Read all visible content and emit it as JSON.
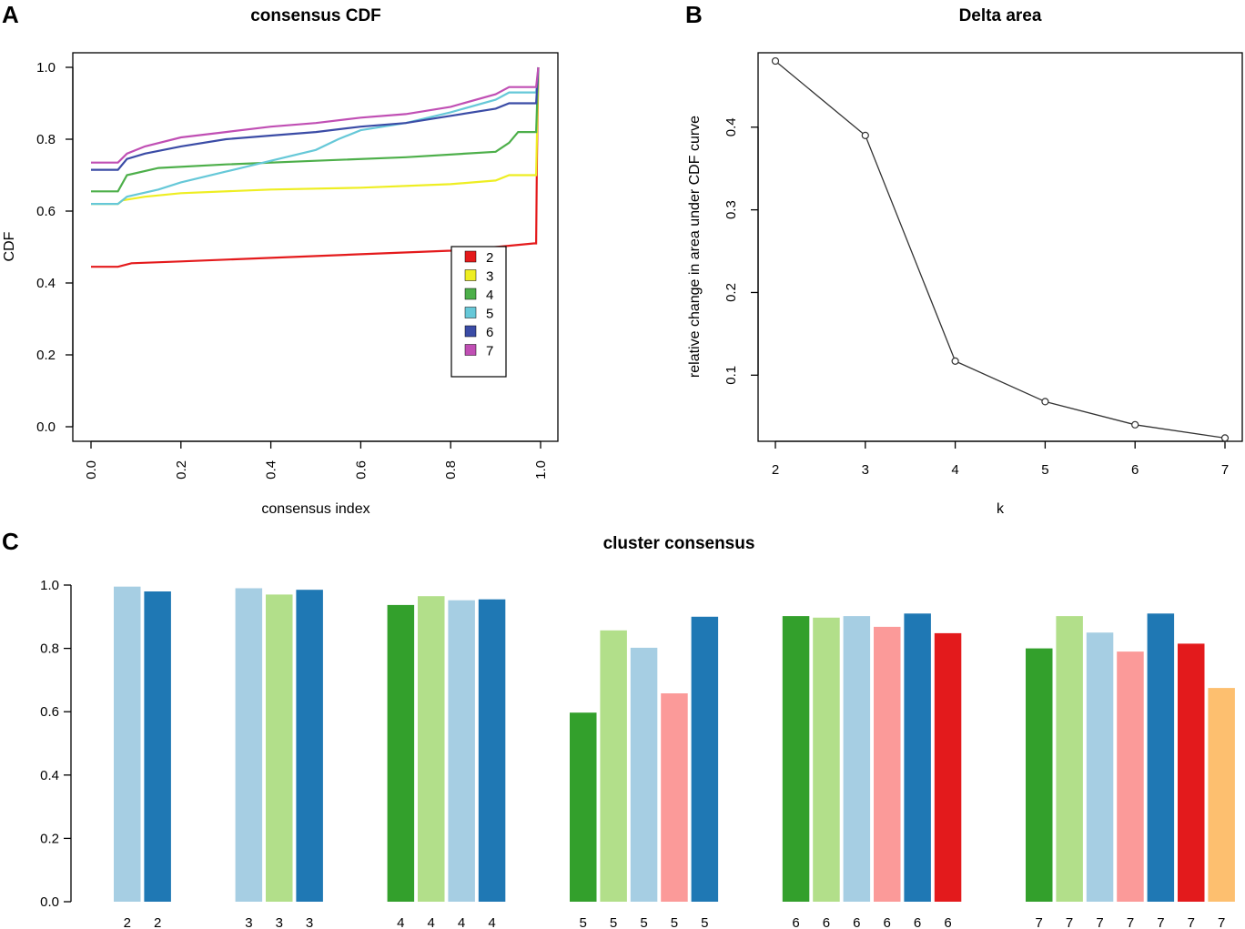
{
  "chart_data": [
    {
      "panel": "A",
      "type": "line",
      "title": "consensus CDF",
      "xlabel": "consensus index",
      "ylabel": "CDF",
      "xlim": [
        0,
        1
      ],
      "ylim": [
        0,
        1
      ],
      "xticks": [
        "0.0",
        "0.2",
        "0.4",
        "0.6",
        "0.8",
        "1.0"
      ],
      "yticks": [
        "0.0",
        "0.2",
        "0.4",
        "0.6",
        "0.8",
        "1.0"
      ],
      "legend_position": "bottom-right",
      "series": [
        {
          "name": "2",
          "color": "#e41a1c",
          "points": [
            [
              0,
              0.445
            ],
            [
              0.06,
              0.445
            ],
            [
              0.09,
              0.455
            ],
            [
              0.2,
              0.46
            ],
            [
              0.4,
              0.47
            ],
            [
              0.6,
              0.48
            ],
            [
              0.8,
              0.49
            ],
            [
              0.9,
              0.5
            ],
            [
              0.985,
              0.51
            ],
            [
              0.99,
              0.51
            ],
            [
              0.992,
              0.75
            ],
            [
              0.995,
              1.0
            ]
          ]
        },
        {
          "name": "3",
          "color": "#eeee22",
          "points": [
            [
              0,
              0.62
            ],
            [
              0.06,
              0.62
            ],
            [
              0.07,
              0.63
            ],
            [
              0.12,
              0.64
            ],
            [
              0.2,
              0.65
            ],
            [
              0.4,
              0.66
            ],
            [
              0.6,
              0.665
            ],
            [
              0.8,
              0.675
            ],
            [
              0.9,
              0.685
            ],
            [
              0.93,
              0.7
            ],
            [
              0.99,
              0.7
            ],
            [
              0.995,
              1.0
            ]
          ]
        },
        {
          "name": "4",
          "color": "#4daf4a",
          "points": [
            [
              0,
              0.655
            ],
            [
              0.06,
              0.655
            ],
            [
              0.08,
              0.7
            ],
            [
              0.15,
              0.72
            ],
            [
              0.3,
              0.73
            ],
            [
              0.5,
              0.74
            ],
            [
              0.7,
              0.75
            ],
            [
              0.9,
              0.765
            ],
            [
              0.93,
              0.79
            ],
            [
              0.95,
              0.82
            ],
            [
              0.99,
              0.82
            ],
            [
              0.995,
              1.0
            ]
          ]
        },
        {
          "name": "5",
          "color": "#66c8d8",
          "points": [
            [
              0,
              0.62
            ],
            [
              0.06,
              0.62
            ],
            [
              0.08,
              0.64
            ],
            [
              0.15,
              0.66
            ],
            [
              0.2,
              0.68
            ],
            [
              0.3,
              0.71
            ],
            [
              0.4,
              0.74
            ],
            [
              0.5,
              0.77
            ],
            [
              0.55,
              0.8
            ],
            [
              0.6,
              0.825
            ],
            [
              0.7,
              0.845
            ],
            [
              0.8,
              0.875
            ],
            [
              0.9,
              0.91
            ],
            [
              0.93,
              0.93
            ],
            [
              0.99,
              0.93
            ],
            [
              0.995,
              1.0
            ]
          ]
        },
        {
          "name": "6",
          "color": "#3b4ca6",
          "points": [
            [
              0,
              0.715
            ],
            [
              0.06,
              0.715
            ],
            [
              0.08,
              0.745
            ],
            [
              0.12,
              0.76
            ],
            [
              0.2,
              0.78
            ],
            [
              0.3,
              0.8
            ],
            [
              0.4,
              0.81
            ],
            [
              0.5,
              0.82
            ],
            [
              0.6,
              0.835
            ],
            [
              0.7,
              0.845
            ],
            [
              0.8,
              0.865
            ],
            [
              0.9,
              0.885
            ],
            [
              0.93,
              0.9
            ],
            [
              0.99,
              0.9
            ],
            [
              0.995,
              1.0
            ]
          ]
        },
        {
          "name": "7",
          "color": "#c04fb4",
          "points": [
            [
              0,
              0.735
            ],
            [
              0.06,
              0.735
            ],
            [
              0.08,
              0.76
            ],
            [
              0.12,
              0.78
            ],
            [
              0.2,
              0.805
            ],
            [
              0.3,
              0.82
            ],
            [
              0.4,
              0.835
            ],
            [
              0.5,
              0.845
            ],
            [
              0.6,
              0.86
            ],
            [
              0.7,
              0.87
            ],
            [
              0.8,
              0.89
            ],
            [
              0.9,
              0.925
            ],
            [
              0.93,
              0.945
            ],
            [
              0.99,
              0.945
            ],
            [
              0.995,
              1.0
            ]
          ]
        }
      ]
    },
    {
      "panel": "B",
      "type": "line",
      "title": "Delta area",
      "xlabel": "k",
      "ylabel": "relative change in area under CDF curve",
      "xlim": [
        2,
        7
      ],
      "ylim": [
        0.02,
        0.49
      ],
      "xticks": [
        "2",
        "3",
        "4",
        "5",
        "6",
        "7"
      ],
      "yticks": [
        "0.1",
        "0.2",
        "0.3",
        "0.4"
      ],
      "x": [
        2,
        3,
        4,
        5,
        6,
        7
      ],
      "y": [
        0.48,
        0.39,
        0.117,
        0.068,
        0.04,
        0.024
      ]
    },
    {
      "panel": "C",
      "type": "bar",
      "title": "cluster consensus",
      "xlabel": "",
      "ylabel": "",
      "ylim": [
        0,
        1
      ],
      "yticks": [
        "0.0",
        "0.2",
        "0.4",
        "0.6",
        "0.8",
        "1.0"
      ],
      "groups": [
        {
          "k": "2",
          "bars": [
            {
              "label": "2",
              "value": 0.995,
              "color": "#a6cee3"
            },
            {
              "label": "2",
              "value": 0.98,
              "color": "#1f78b4"
            }
          ]
        },
        {
          "k": "3",
          "bars": [
            {
              "label": "3",
              "value": 0.99,
              "color": "#a6cee3"
            },
            {
              "label": "3",
              "value": 0.97,
              "color": "#b2df8a"
            },
            {
              "label": "3",
              "value": 0.985,
              "color": "#1f78b4"
            }
          ]
        },
        {
          "k": "4",
          "bars": [
            {
              "label": "4",
              "value": 0.937,
              "color": "#33a02c"
            },
            {
              "label": "4",
              "value": 0.965,
              "color": "#b2df8a"
            },
            {
              "label": "4",
              "value": 0.952,
              "color": "#a6cee3"
            },
            {
              "label": "4",
              "value": 0.955,
              "color": "#1f78b4"
            }
          ]
        },
        {
          "k": "5",
          "bars": [
            {
              "label": "5",
              "value": 0.597,
              "color": "#33a02c"
            },
            {
              "label": "5",
              "value": 0.857,
              "color": "#b2df8a"
            },
            {
              "label": "5",
              "value": 0.802,
              "color": "#a6cee3"
            },
            {
              "label": "5",
              "value": 0.658,
              "color": "#fb9a99"
            },
            {
              "label": "5",
              "value": 0.9,
              "color": "#1f78b4"
            }
          ]
        },
        {
          "k": "6",
          "bars": [
            {
              "label": "6",
              "value": 0.902,
              "color": "#33a02c"
            },
            {
              "label": "6",
              "value": 0.897,
              "color": "#b2df8a"
            },
            {
              "label": "6",
              "value": 0.902,
              "color": "#a6cee3"
            },
            {
              "label": "6",
              "value": 0.868,
              "color": "#fb9a99"
            },
            {
              "label": "6",
              "value": 0.91,
              "color": "#1f78b4"
            },
            {
              "label": "6",
              "value": 0.848,
              "color": "#e31a1c"
            }
          ]
        },
        {
          "k": "7",
          "bars": [
            {
              "label": "7",
              "value": 0.8,
              "color": "#33a02c"
            },
            {
              "label": "7",
              "value": 0.902,
              "color": "#b2df8a"
            },
            {
              "label": "7",
              "value": 0.85,
              "color": "#a6cee3"
            },
            {
              "label": "7",
              "value": 0.79,
              "color": "#fb9a99"
            },
            {
              "label": "7",
              "value": 0.91,
              "color": "#1f78b4"
            },
            {
              "label": "7",
              "value": 0.815,
              "color": "#e31a1c"
            },
            {
              "label": "7",
              "value": 0.675,
              "color": "#fdbf6f"
            }
          ]
        }
      ]
    }
  ],
  "panels": {
    "a": {
      "letter": "A"
    },
    "b": {
      "letter": "B"
    },
    "c": {
      "letter": "C"
    }
  }
}
